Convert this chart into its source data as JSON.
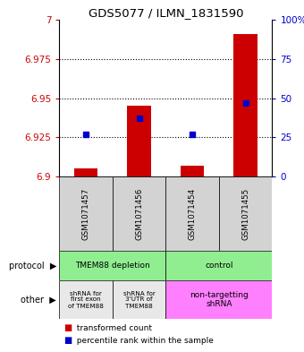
{
  "title": "GDS5077 / ILMN_1831590",
  "sample_labels": [
    "GSM1071457",
    "GSM1071456",
    "GSM1071454",
    "GSM1071455"
  ],
  "red_values": [
    6.905,
    6.945,
    6.907,
    6.991
  ],
  "blue_percentiles": [
    27,
    37,
    27,
    47
  ],
  "ymin": 6.9,
  "ymax": 7.0,
  "yticks": [
    6.9,
    6.925,
    6.95,
    6.975,
    7.0
  ],
  "ytick_labels": [
    "6.9",
    "6.925",
    "6.95",
    "6.975",
    "7"
  ],
  "right_yticks": [
    0,
    25,
    50,
    75,
    100
  ],
  "right_ytick_labels": [
    "0",
    "25",
    "50",
    "75",
    "100%"
  ],
  "red_color": "#CC0000",
  "blue_color": "#0000CC",
  "bar_width": 0.45,
  "background_color": "#ffffff",
  "plot_bg": "#ffffff",
  "sample_area_color": "#D3D3D3",
  "legend_red": "transformed count",
  "legend_blue": "percentile rank within the sample",
  "protocol_green": "#90EE90",
  "other_grey": "#E8E8E8",
  "other_pink": "#FF80FF"
}
